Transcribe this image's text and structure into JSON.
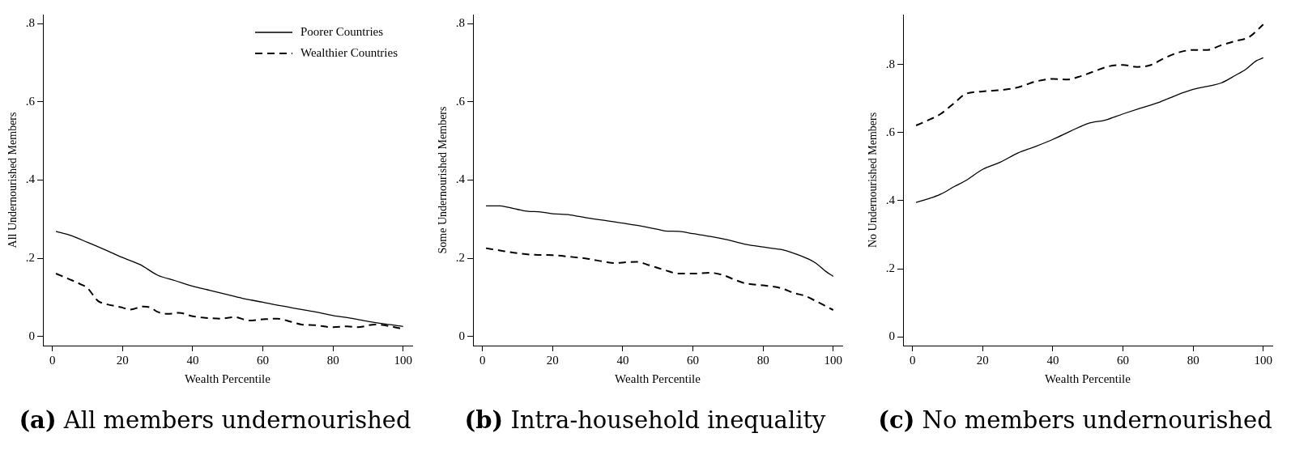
{
  "chart_data": [
    {
      "type": "line",
      "title": "(a) All members undernourished",
      "xlabel": "Wealth Percentile",
      "ylabel": "All Undernourished Members",
      "xlim": [
        -2.7,
        102.6
      ],
      "xticks": [
        0,
        20,
        40,
        60,
        80,
        100
      ],
      "ylim": [
        -0.023,
        0.823
      ],
      "yticks": [
        {
          "value": 0,
          "label": "0"
        },
        {
          "value": 0.2,
          "label": ".2"
        },
        {
          "value": 0.4,
          "label": ".4"
        },
        {
          "value": 0.6,
          "label": ".6"
        },
        {
          "value": 0.8,
          "label": ".8"
        }
      ],
      "grid": false,
      "legend": "top right",
      "marker": "none",
      "series": [
        {
          "name": "Poorer Countries",
          "color": "#000000",
          "line_style": "solid",
          "x": [
            1,
            5,
            10,
            15,
            20,
            25,
            30,
            35,
            40,
            45,
            50,
            55,
            60,
            65,
            70,
            75,
            80,
            85,
            90,
            95,
            100
          ],
          "values": [
            0.269,
            0.259,
            0.241,
            0.222,
            0.202,
            0.184,
            0.157,
            0.143,
            0.129,
            0.118,
            0.107,
            0.096,
            0.088,
            0.079,
            0.071,
            0.063,
            0.054,
            0.047,
            0.039,
            0.032,
            0.026
          ]
        },
        {
          "name": "Wealthier Countries",
          "color": "#000000",
          "line_style": "dashed",
          "x": [
            1,
            5,
            8,
            10,
            13,
            15,
            20,
            22,
            26,
            28,
            30,
            33,
            36,
            40,
            45,
            48,
            52,
            56,
            60,
            64,
            68,
            71,
            75,
            80,
            84,
            87,
            92,
            96,
            100
          ],
          "values": [
            0.161,
            0.146,
            0.134,
            0.124,
            0.091,
            0.084,
            0.074,
            0.069,
            0.077,
            0.074,
            0.063,
            0.058,
            0.061,
            0.052,
            0.047,
            0.046,
            0.05,
            0.041,
            0.044,
            0.046,
            0.038,
            0.031,
            0.029,
            0.024,
            0.026,
            0.024,
            0.031,
            0.027,
            0.019
          ]
        }
      ]
    },
    {
      "type": "line",
      "title": "(b) Intra-household inequality",
      "xlabel": "Wealth Percentile",
      "ylabel": "Some Undernourished Members",
      "xlim": [
        -2.7,
        102.6
      ],
      "xticks": [
        0,
        20,
        40,
        60,
        80,
        100
      ],
      "ylim": [
        -0.023,
        0.823
      ],
      "yticks": [
        {
          "value": 0,
          "label": "0"
        },
        {
          "value": 0.2,
          "label": ".2"
        },
        {
          "value": 0.4,
          "label": ".4"
        },
        {
          "value": 0.6,
          "label": ".6"
        },
        {
          "value": 0.8,
          "label": ".8"
        }
      ],
      "grid": false,
      "legend": false,
      "marker": "none",
      "series": [
        {
          "color": "#000000",
          "line_style": "solid",
          "x": [
            1,
            5,
            7,
            10,
            13,
            16,
            20,
            25,
            30,
            35,
            40,
            45,
            50,
            52,
            56,
            60,
            65,
            70,
            75,
            80,
            84,
            86,
            90,
            93,
            95,
            98,
            100
          ],
          "values": [
            0.334,
            0.334,
            0.331,
            0.325,
            0.32,
            0.319,
            0.314,
            0.311,
            0.303,
            0.297,
            0.29,
            0.283,
            0.274,
            0.27,
            0.269,
            0.263,
            0.256,
            0.247,
            0.236,
            0.229,
            0.224,
            0.221,
            0.209,
            0.198,
            0.188,
            0.166,
            0.154
          ]
        },
        {
          "color": "#000000",
          "line_style": "dashed",
          "x": [
            1,
            5,
            10,
            15,
            20,
            25,
            30,
            35,
            38,
            41,
            44,
            47,
            52,
            56,
            60,
            65,
            69,
            72,
            75,
            80,
            85,
            89,
            92,
            95,
            100
          ],
          "values": [
            0.226,
            0.22,
            0.213,
            0.209,
            0.208,
            0.204,
            0.199,
            0.191,
            0.188,
            0.19,
            0.191,
            0.184,
            0.17,
            0.161,
            0.161,
            0.163,
            0.156,
            0.145,
            0.136,
            0.131,
            0.124,
            0.111,
            0.104,
            0.091,
            0.068
          ]
        }
      ]
    },
    {
      "type": "line",
      "title": "(c) No members undernourished",
      "xlabel": "Wealth Percentile",
      "ylabel": "No Undernourished Members",
      "xlim": [
        -2.7,
        102.6
      ],
      "xticks": [
        0,
        20,
        40,
        60,
        80,
        100
      ],
      "ylim": [
        -0.026,
        0.947
      ],
      "yticks": [
        {
          "value": 0,
          "label": "0"
        },
        {
          "value": 0.2,
          "label": ".2"
        },
        {
          "value": 0.4,
          "label": ".4"
        },
        {
          "value": 0.6,
          "label": ".6"
        },
        {
          "value": 0.8,
          "label": ".8"
        }
      ],
      "grid": false,
      "legend": false,
      "marker": "none",
      "series": [
        {
          "color": "#000000",
          "line_style": "solid",
          "x": [
            1,
            5,
            8,
            12,
            15,
            20,
            25,
            30,
            35,
            40,
            45,
            50,
            55,
            60,
            65,
            70,
            75,
            80,
            85,
            88,
            92,
            95,
            98,
            100
          ],
          "values": [
            0.395,
            0.407,
            0.419,
            0.442,
            0.458,
            0.492,
            0.513,
            0.54,
            0.559,
            0.58,
            0.604,
            0.627,
            0.637,
            0.655,
            0.672,
            0.688,
            0.709,
            0.727,
            0.738,
            0.746,
            0.768,
            0.786,
            0.811,
            0.82
          ]
        },
        {
          "color": "#000000",
          "line_style": "dashed",
          "x": [
            1,
            5,
            8,
            12,
            15,
            20,
            25,
            30,
            35,
            40,
            44,
            48,
            52,
            56,
            60,
            64,
            68,
            72,
            76,
            80,
            84,
            88,
            92,
            96,
            100
          ],
          "values": [
            0.621,
            0.639,
            0.655,
            0.688,
            0.713,
            0.721,
            0.725,
            0.733,
            0.75,
            0.758,
            0.756,
            0.766,
            0.781,
            0.795,
            0.799,
            0.793,
            0.799,
            0.82,
            0.836,
            0.843,
            0.843,
            0.857,
            0.869,
            0.881,
            0.918
          ]
        }
      ]
    }
  ]
}
